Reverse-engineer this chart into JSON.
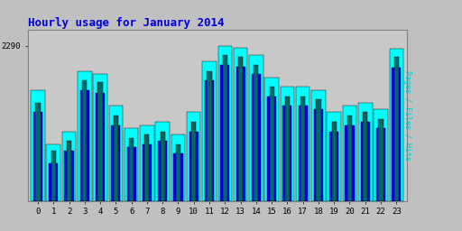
{
  "title": "Hourly usage for January 2014",
  "title_color": "#0000dd",
  "title_fontsize": 9,
  "background_color": "#c0c0c0",
  "plot_bg_color": "#c8c8c8",
  "hours": [
    0,
    1,
    2,
    3,
    4,
    5,
    6,
    7,
    8,
    9,
    10,
    11,
    12,
    13,
    14,
    15,
    16,
    17,
    18,
    19,
    20,
    21,
    22,
    23
  ],
  "hits": [
    2150,
    1980,
    2020,
    2210,
    2200,
    2100,
    2030,
    2040,
    2050,
    2010,
    2080,
    2240,
    2290,
    2285,
    2260,
    2190,
    2160,
    2160,
    2150,
    2080,
    2100,
    2110,
    2090,
    2280
  ],
  "files": [
    2080,
    1920,
    1960,
    2150,
    2140,
    2040,
    1970,
    1980,
    1990,
    1950,
    2020,
    2180,
    2230,
    2225,
    2200,
    2130,
    2100,
    2100,
    2090,
    2020,
    2040,
    2050,
    2030,
    2220
  ],
  "pages": [
    2110,
    1960,
    1990,
    2180,
    2175,
    2070,
    2000,
    2010,
    2020,
    1980,
    2050,
    2210,
    2260,
    2255,
    2230,
    2160,
    2130,
    2130,
    2120,
    2050,
    2070,
    2080,
    2060,
    2255
  ],
  "hits_color": "#00ffff",
  "files_color": "#0000ff",
  "pages_color": "#006868",
  "bar_edge_color": "#000000",
  "ylabel": "Pages / Files / Hits",
  "ylabel_color": "#00cccc",
  "ytick_label": "2290",
  "ylim_min": 1800,
  "ylim_max": 2340,
  "ytick_val": 2290,
  "bar_width": 0.9,
  "figwidth": 5.12,
  "figheight": 2.56,
  "dpi": 100
}
